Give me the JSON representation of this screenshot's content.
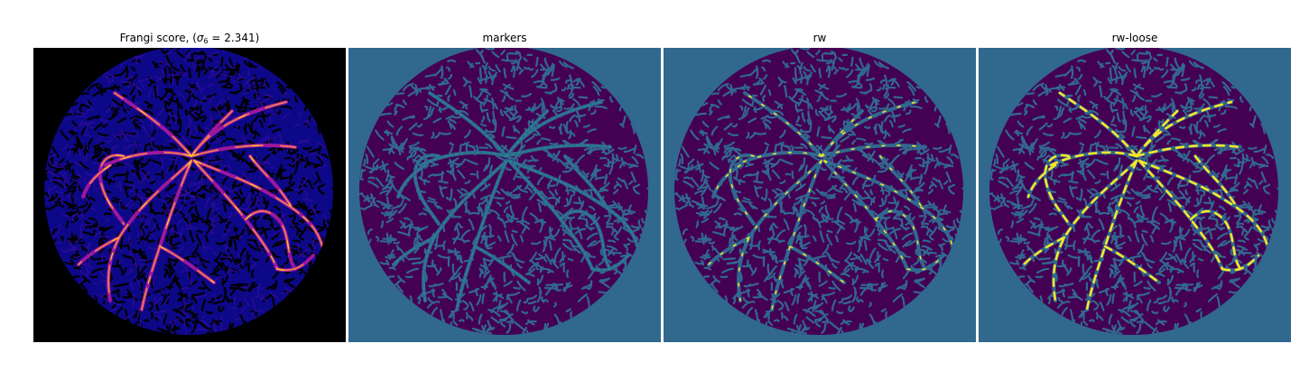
{
  "panels": [
    {
      "id": "frangi",
      "title_prefix": "Frangi score, (",
      "sigma_symbol": "σ",
      "sigma_sub": "6",
      "title_suffix": " = 2.341)",
      "background": "#000000",
      "disk_color": "#1a0a8a",
      "colormap": "plasma"
    },
    {
      "id": "markers",
      "title": "markers",
      "background": "#31688e",
      "disk_color": "#440154",
      "colormap": "viridis"
    },
    {
      "id": "rw",
      "title": "rw",
      "background": "#31688e",
      "disk_color": "#440154",
      "colormap": "viridis"
    },
    {
      "id": "rw-loose",
      "title": "rw-loose",
      "background": "#31688e",
      "disk_color": "#440154",
      "colormap": "viridis"
    }
  ],
  "colors": {
    "plasma_dark": "#0d0887",
    "plasma_mid": "#9c179e",
    "plasma_orange": "#ed7953",
    "plasma_yellow": "#fdca26",
    "viridis_purple": "#440154",
    "viridis_teal": "#31688e",
    "viridis_green": "#21918c",
    "viridis_yellow": "#fde725"
  }
}
